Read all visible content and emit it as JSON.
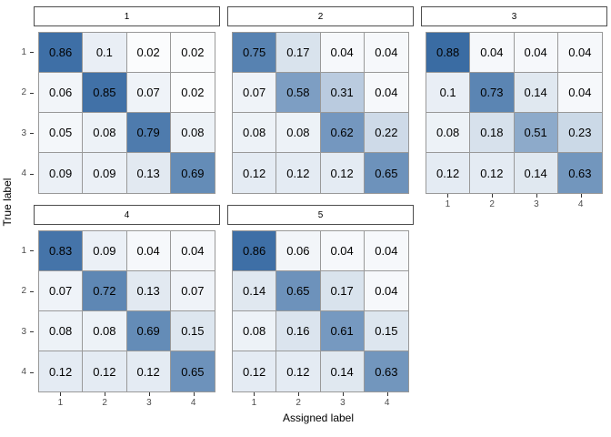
{
  "chart_data": {
    "type": "heatmap",
    "title": "",
    "xlabel": "Assigned label",
    "ylabel": "True label",
    "x_ticks": [
      "1",
      "2",
      "3",
      "4"
    ],
    "y_ticks": [
      "1",
      "2",
      "3",
      "4"
    ],
    "legend": "none",
    "grid": "off",
    "value_range": [
      0,
      1
    ],
    "facets": [
      {
        "label": "1",
        "matrix": [
          [
            0.86,
            0.1,
            0.02,
            0.02
          ],
          [
            0.06,
            0.85,
            0.07,
            0.02
          ],
          [
            0.05,
            0.08,
            0.79,
            0.08
          ],
          [
            0.09,
            0.09,
            0.13,
            0.69
          ]
        ]
      },
      {
        "label": "2",
        "matrix": [
          [
            0.75,
            0.17,
            0.04,
            0.04
          ],
          [
            0.07,
            0.58,
            0.31,
            0.04
          ],
          [
            0.08,
            0.08,
            0.62,
            0.22
          ],
          [
            0.12,
            0.12,
            0.12,
            0.65
          ]
        ]
      },
      {
        "label": "3",
        "matrix": [
          [
            0.88,
            0.04,
            0.04,
            0.04
          ],
          [
            0.1,
            0.73,
            0.14,
            0.04
          ],
          [
            0.08,
            0.18,
            0.51,
            0.23
          ],
          [
            0.12,
            0.12,
            0.14,
            0.63
          ]
        ]
      },
      {
        "label": "4",
        "matrix": [
          [
            0.83,
            0.09,
            0.04,
            0.04
          ],
          [
            0.07,
            0.72,
            0.13,
            0.07
          ],
          [
            0.08,
            0.08,
            0.69,
            0.15
          ],
          [
            0.12,
            0.12,
            0.12,
            0.65
          ]
        ]
      },
      {
        "label": "5",
        "matrix": [
          [
            0.86,
            0.06,
            0.04,
            0.04
          ],
          [
            0.14,
            0.65,
            0.17,
            0.04
          ],
          [
            0.08,
            0.16,
            0.61,
            0.15
          ],
          [
            0.12,
            0.12,
            0.14,
            0.63
          ]
        ]
      }
    ],
    "colors": {
      "fill_low": "#FFFFFF",
      "fill_high": "#1F5897",
      "tile_border": "#999999",
      "strip_border": "#4d4d4d",
      "tick_label": "#4d4d4d",
      "cell_text": "#000000"
    }
  }
}
